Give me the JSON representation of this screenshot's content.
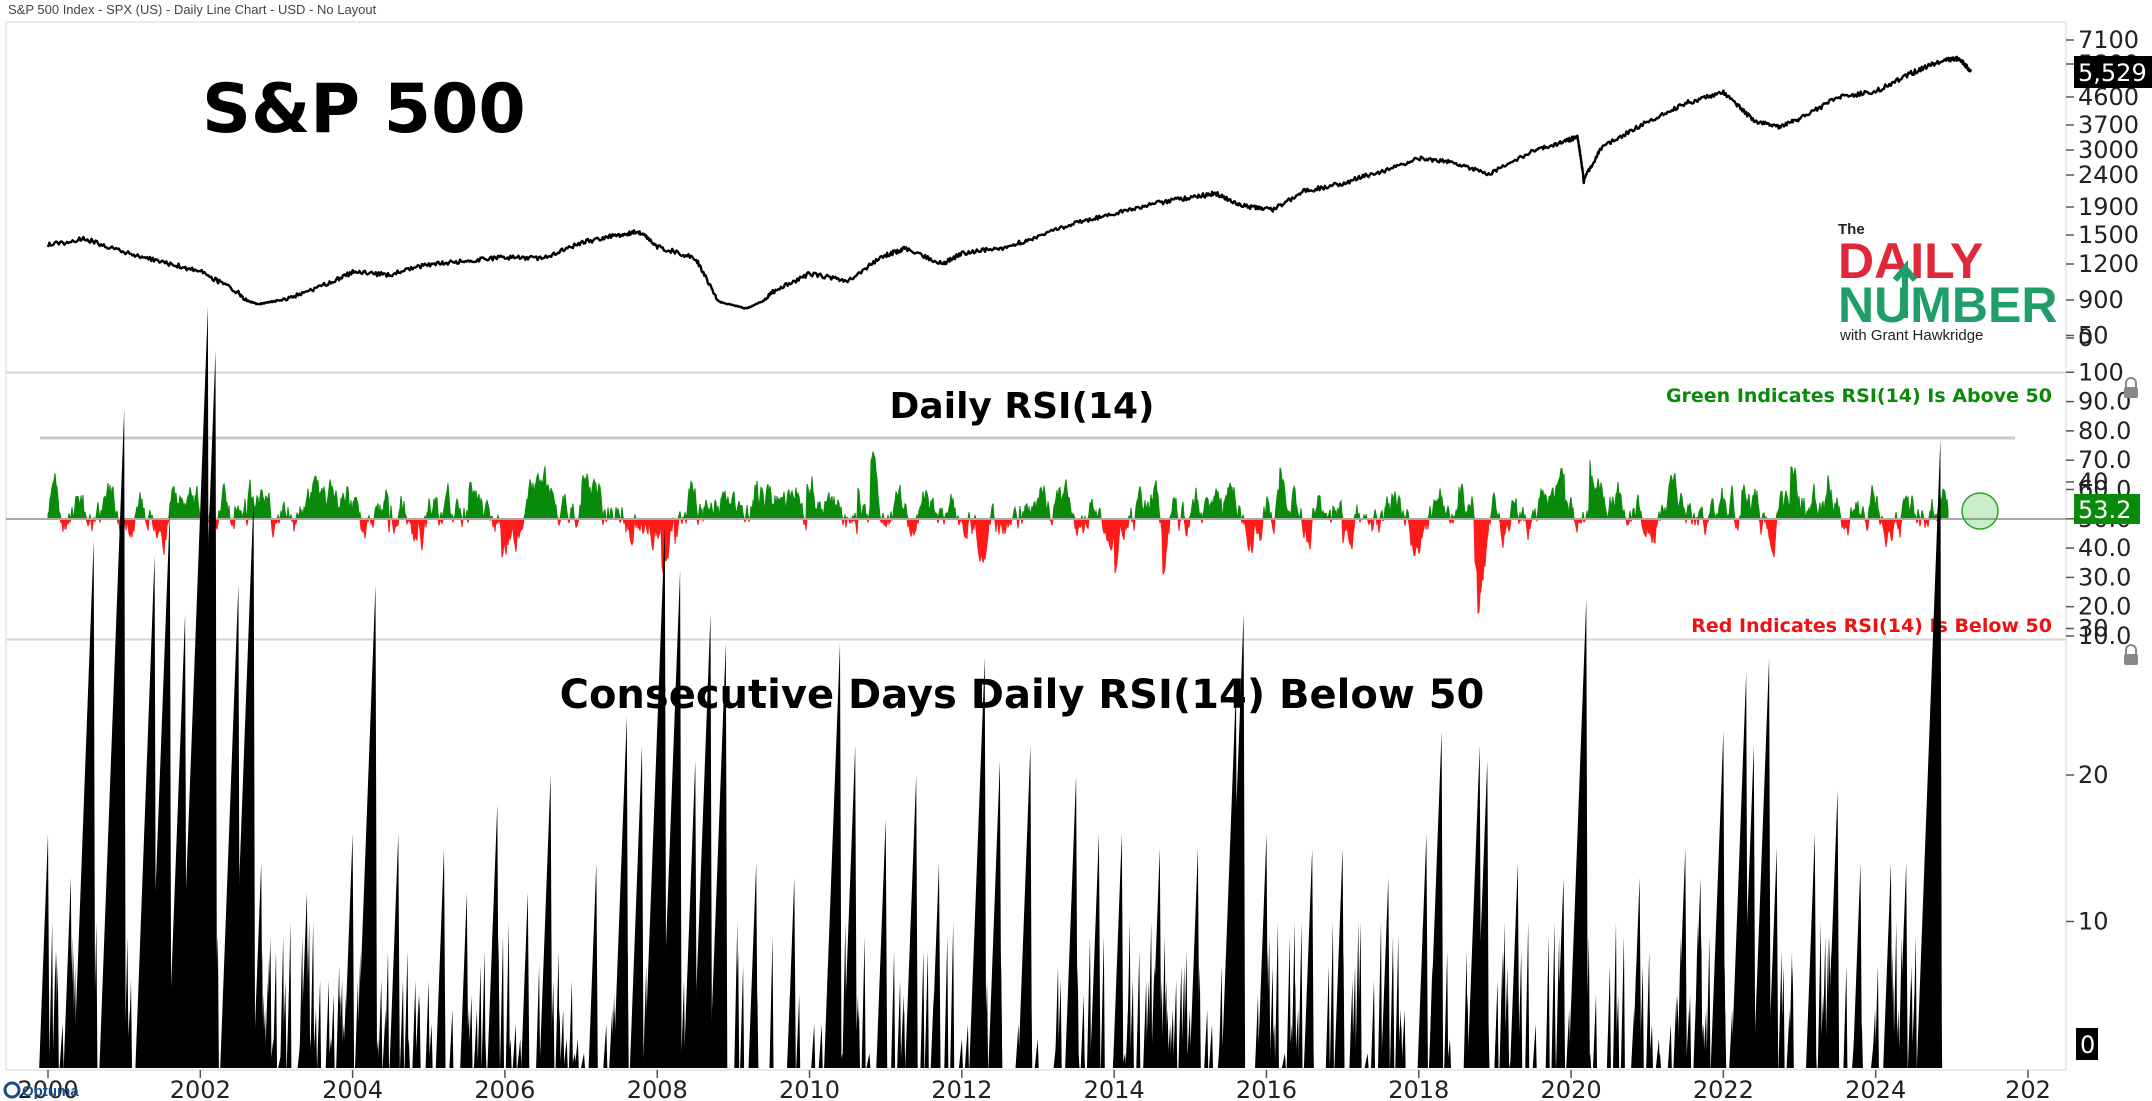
{
  "header": {
    "label": "S&P 500 Index - SPX (US) - Daily Line Chart - USD - No Layout"
  },
  "logo": {
    "the": "The",
    "daily": "DAILY",
    "number": "NUMBER",
    "with": "with Grant Hawkridge"
  },
  "footer": {
    "brand": "Optuma"
  },
  "colors": {
    "price_line": "#000000",
    "rsi_above": "#0a8a0a",
    "rsi_below": "#ff1a1a",
    "bars": "#000000",
    "grid_line": "#c8c8d0",
    "logo_red": "#e0283c",
    "logo_green": "#1f9e6a"
  },
  "chart_data": [
    {
      "type": "line",
      "title": "S&P 500",
      "series_name": "S&P 500",
      "last_value": "5,529",
      "y_ticks": [
        "7100",
        "5800",
        "4600",
        "3700",
        "3000",
        "2400",
        "1900",
        "1500",
        "1200",
        "900",
        "0"
      ],
      "x": [
        "2000-01",
        "2000-07",
        "2001-01",
        "2001-07",
        "2002-01",
        "2002-07",
        "2002-10",
        "2003-01",
        "2003-07",
        "2004-01",
        "2004-07",
        "2005-01",
        "2005-07",
        "2006-01",
        "2006-07",
        "2007-01",
        "2007-07",
        "2007-10",
        "2008-01",
        "2008-07",
        "2008-11",
        "2009-03",
        "2009-07",
        "2010-01",
        "2010-07",
        "2011-01",
        "2011-04",
        "2011-10",
        "2012-01",
        "2012-07",
        "2013-01",
        "2013-07",
        "2014-01",
        "2014-07",
        "2015-01",
        "2015-05",
        "2015-09",
        "2016-02",
        "2016-07",
        "2017-01",
        "2017-07",
        "2018-01",
        "2018-06",
        "2018-12",
        "2019-07",
        "2019-12",
        "2020-02",
        "2020-03",
        "2020-06",
        "2021-01",
        "2021-07",
        "2022-01",
        "2022-06",
        "2022-10",
        "2023-01",
        "2023-07",
        "2024-01",
        "2024-07",
        "2024-12",
        "2025-02",
        "2025-04"
      ],
      "y": [
        1400,
        1460,
        1320,
        1220,
        1140,
        960,
        800,
        880,
        990,
        1130,
        1110,
        1200,
        1230,
        1270,
        1260,
        1420,
        1500,
        1550,
        1380,
        1260,
        850,
        700,
        960,
        1120,
        1060,
        1290,
        1360,
        1200,
        1310,
        1360,
        1480,
        1680,
        1800,
        1950,
        2050,
        2110,
        1920,
        1860,
        2150,
        2270,
        2470,
        2800,
        2720,
        2420,
        2980,
        3230,
        3380,
        2300,
        3100,
        3800,
        4400,
        4760,
        3800,
        3650,
        3900,
        4580,
        4800,
        5500,
        6000,
        6100,
        5529
      ]
    },
    {
      "type": "area",
      "title": "Daily RSI(14)",
      "last_value": "53.2",
      "reference_line": 50,
      "y_ticks": [
        "100",
        "90.0",
        "80.0",
        "70.0",
        "60.0",
        "50.0",
        "40.0",
        "30.0",
        "20.0",
        "10.0"
      ],
      "ylim": [
        10,
        100
      ],
      "annotations": [
        "Green Indicates RSI(14) Is Above 50",
        "Red Indicates RSI(14) Is Below 50"
      ]
    },
    {
      "type": "bar",
      "title": "Consecutive Days Daily RSI(14) Below 50",
      "last_value": "0",
      "reference_line": 43,
      "y_ticks": [
        "50",
        "40",
        "30",
        "20",
        "10"
      ],
      "ylim": [
        0,
        55
      ],
      "x": [
        2000.0,
        2000.3,
        2000.6,
        2000.9,
        2001.0,
        2001.4,
        2001.6,
        2001.8,
        2002.1,
        2002.2,
        2002.5,
        2002.7,
        2002.8,
        2003.4,
        2004.0,
        2004.3,
        2004.6,
        2005.2,
        2005.5,
        2005.9,
        2006.3,
        2006.6,
        2007.2,
        2007.6,
        2007.8,
        2008.1,
        2008.3,
        2008.5,
        2008.7,
        2008.9,
        2009.3,
        2009.8,
        2010.4,
        2010.6,
        2011.0,
        2011.4,
        2011.7,
        2012.3,
        2012.5,
        2012.9,
        2013.5,
        2013.8,
        2014.1,
        2014.6,
        2015.1,
        2015.6,
        2015.7,
        2016.0,
        2016.6,
        2017.0,
        2017.6,
        2018.1,
        2018.3,
        2018.8,
        2018.9,
        2019.3,
        2019.9,
        2020.2,
        2020.9,
        2021.5,
        2021.7,
        2022.0,
        2022.3,
        2022.4,
        2022.6,
        2022.7,
        2023.2,
        2023.5,
        2023.8,
        2024.2,
        2024.4,
        2024.7,
        2024.85
      ],
      "values": [
        16,
        13,
        36,
        18,
        45,
        35,
        38,
        31,
        52,
        49,
        33,
        39,
        14,
        12,
        16,
        33,
        16,
        15,
        12,
        18,
        12,
        20,
        14,
        24,
        22,
        37,
        34,
        21,
        31,
        29,
        14,
        13,
        29,
        22,
        17,
        20,
        14,
        28,
        21,
        22,
        20,
        16,
        16,
        15,
        15,
        26,
        31,
        16,
        15,
        15,
        13,
        16,
        23,
        22,
        21,
        14,
        13,
        32,
        13,
        15,
        13,
        23,
        27,
        22,
        28,
        15,
        16,
        19,
        14,
        14,
        14,
        14,
        43
      ]
    }
  ],
  "x_axis": {
    "ticks": [
      "2000",
      "2002",
      "2004",
      "2006",
      "2008",
      "2010",
      "2012",
      "2014",
      "2016",
      "2018",
      "2020",
      "2022",
      "2024",
      "202"
    ]
  }
}
